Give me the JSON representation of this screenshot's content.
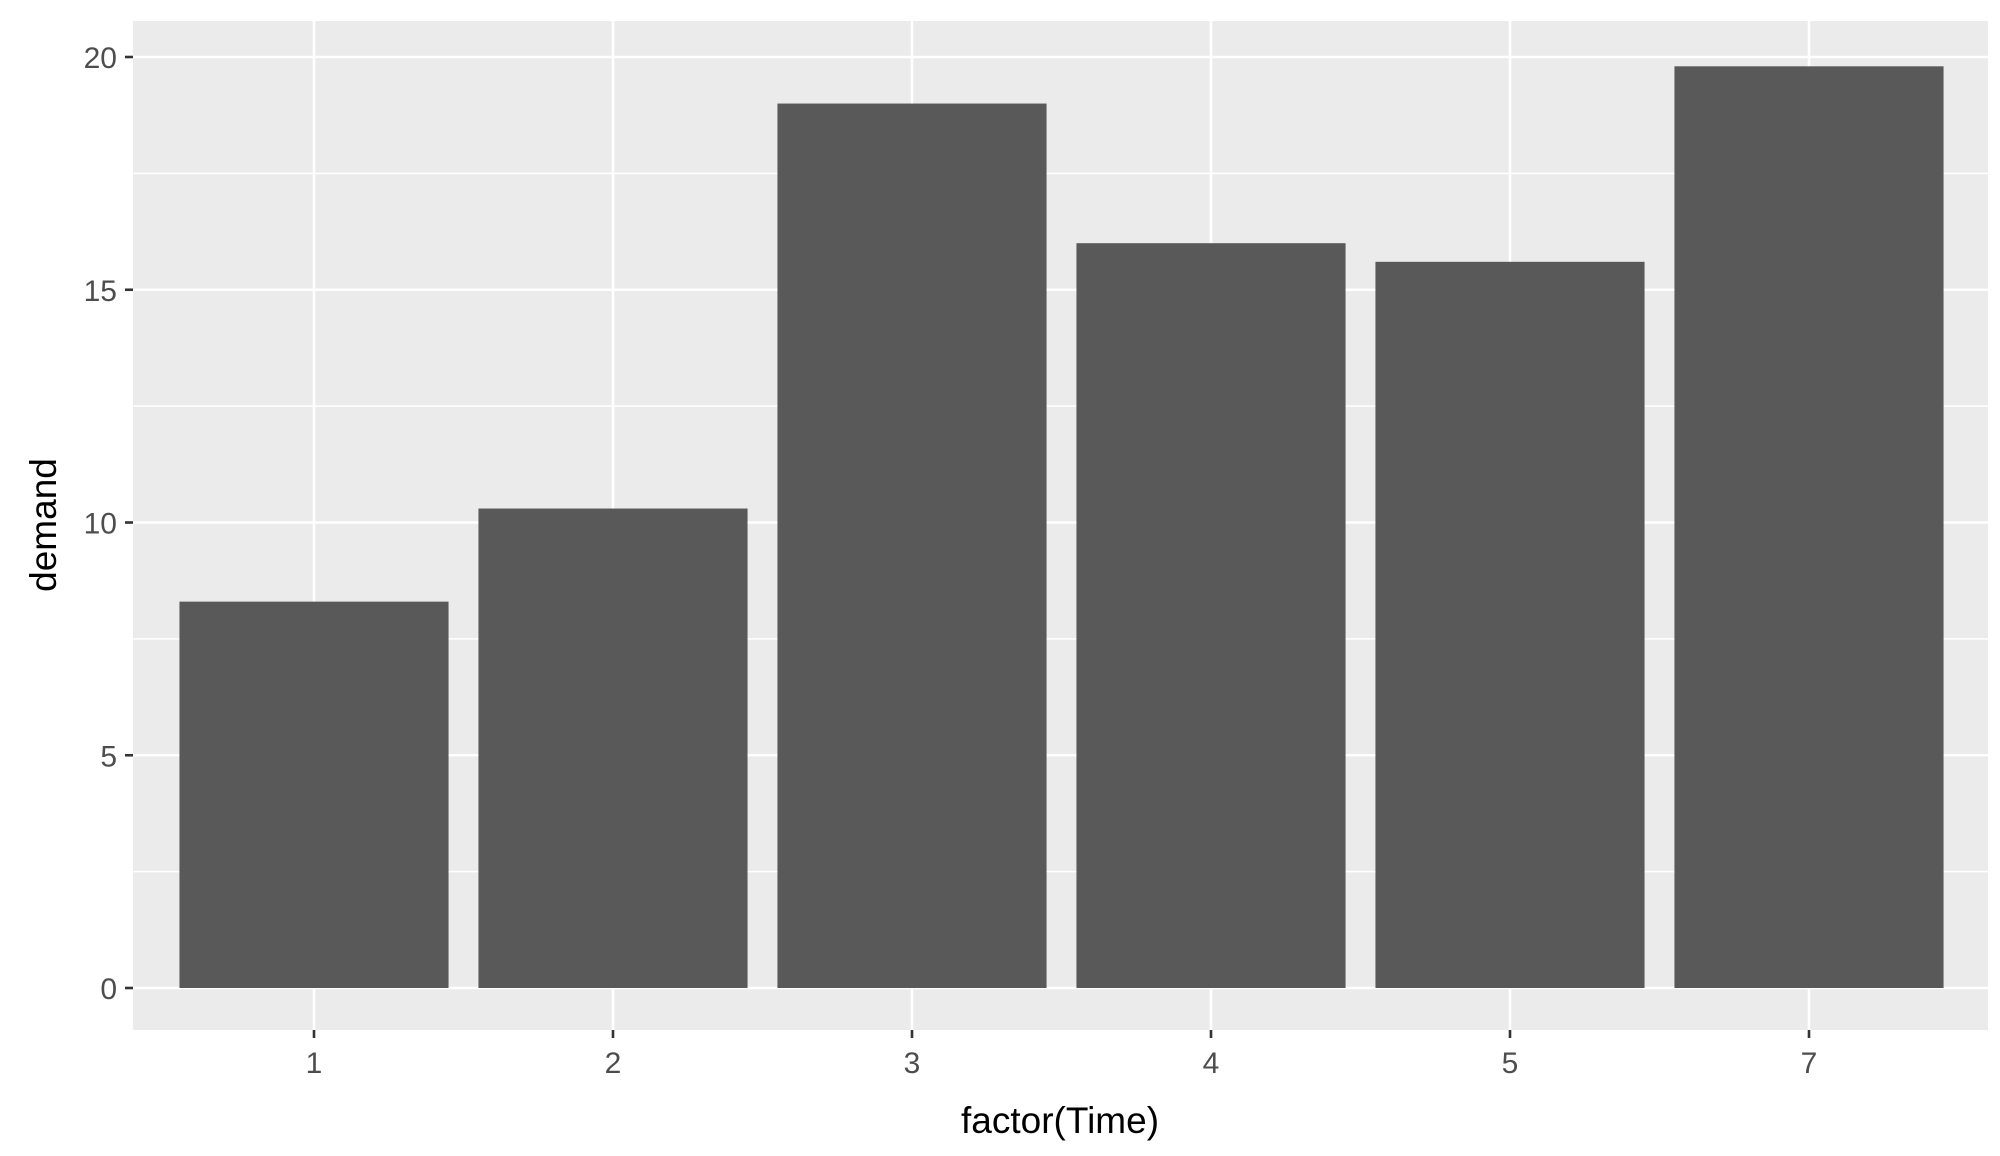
{
  "chart_data": {
    "type": "bar",
    "categories": [
      "1",
      "2",
      "3",
      "4",
      "5",
      "7"
    ],
    "values": [
      8.3,
      10.3,
      19.0,
      16.0,
      15.6,
      19.8
    ],
    "xlabel": "factor(Time)",
    "ylabel": "demand",
    "ylim": [
      0,
      20
    ],
    "yticks": [
      "0",
      "5",
      "10",
      "15",
      "20"
    ],
    "grid": true,
    "colors": {
      "panel": "#EBEBEB",
      "bar": "#595959",
      "grid": "#FFFFFF"
    }
  }
}
